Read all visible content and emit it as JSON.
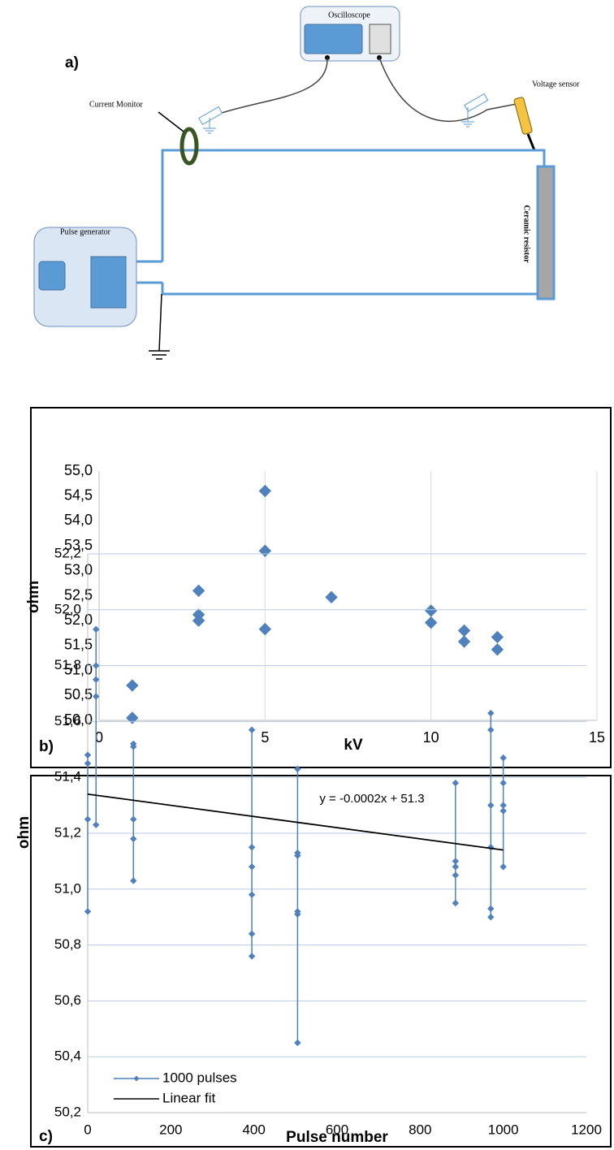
{
  "diagram": {
    "panel_label": "a)",
    "oscilloscope": "Oscilloscope",
    "current_monitor": "Current Monitor",
    "voltage_sensor": "Voltage sensor",
    "pulse_generator": "Pulse generator",
    "ceramic_resistor": "Ceramic resistor"
  },
  "chart_data": [
    {
      "type": "scatter",
      "panel_label": "b)",
      "xlabel": "kV",
      "ylabel": "ohm",
      "color": "#4f81bd",
      "x": [
        1,
        1,
        3,
        3,
        3,
        5,
        5,
        5,
        7,
        10,
        10,
        11,
        11,
        12,
        12
      ],
      "values": [
        50.7,
        50.05,
        52.6,
        52.12,
        52.0,
        54.6,
        53.4,
        51.83,
        52.47,
        52.2,
        51.96,
        51.8,
        51.58,
        51.67,
        51.42
      ],
      "xlim": [
        0,
        15
      ],
      "xticks": [
        0,
        5,
        10,
        15
      ],
      "ylim": [
        50,
        55
      ],
      "yticks": [
        {
          "value": 50,
          "label": "50,0"
        },
        {
          "value": 50.5,
          "label": "50,5"
        },
        {
          "value": 51,
          "label": "51,0"
        },
        {
          "value": 51.5,
          "label": "51,5"
        },
        {
          "value": 52,
          "label": "52,0"
        },
        {
          "value": 52.5,
          "label": "52,5"
        },
        {
          "value": 53,
          "label": "53,0"
        },
        {
          "value": 53.5,
          "label": "53,5"
        },
        {
          "value": 54,
          "label": "54,0"
        },
        {
          "value": 54.5,
          "label": "54,5"
        },
        {
          "value": 55,
          "label": "55,0"
        }
      ],
      "grid": "x"
    },
    {
      "type": "line",
      "panel_label": "c)",
      "xlabel": "Pulse number",
      "ylabel": "ohm",
      "annotation": "y = -0.0002x + 51.3",
      "legend": "lower left",
      "series": [
        {
          "name": "1000 pulses",
          "color": "#4f81bd",
          "markers": true,
          "x": [
            0,
            0,
            0,
            0,
            null,
            20,
            20,
            20,
            20,
            20,
            null,
            110,
            110,
            110,
            110,
            110,
            null,
            395,
            395,
            395,
            395,
            395,
            395,
            null,
            505,
            505,
            505,
            505,
            505,
            505,
            null,
            885,
            885,
            885,
            885,
            885,
            null,
            970,
            970,
            970,
            970,
            970,
            970,
            null,
            1000,
            1000,
            1000,
            1000,
            1000
          ],
          "values": [
            51.48,
            51.45,
            51.25,
            50.92,
            null,
            51.23,
            51.93,
            51.8,
            51.75,
            51.69,
            null,
            51.52,
            51.51,
            51.25,
            51.18,
            51.03,
            null,
            51.57,
            51.15,
            51.08,
            50.98,
            50.84,
            50.76,
            null,
            51.43,
            51.13,
            51.12,
            50.92,
            50.91,
            50.45,
            null,
            51.38,
            51.1,
            51.08,
            51.05,
            50.95,
            null,
            51.63,
            51.57,
            51.3,
            51.15,
            50.93,
            50.9,
            null,
            51.47,
            51.38,
            51.3,
            51.28,
            51.08
          ]
        },
        {
          "name": "Linear fit",
          "color": "#000000",
          "markers": false,
          "x": [
            0,
            1000
          ],
          "values": [
            51.34,
            51.14
          ]
        }
      ],
      "xlim": [
        0,
        1200
      ],
      "xticks": [
        0,
        200,
        400,
        600,
        800,
        1000,
        1200
      ],
      "ylim": [
        50.2,
        52.2
      ],
      "yticks": [
        {
          "value": 50.2,
          "label": "50,2"
        },
        {
          "value": 50.4,
          "label": "50,4"
        },
        {
          "value": 50.6,
          "label": "50,6"
        },
        {
          "value": 50.8,
          "label": "50,8"
        },
        {
          "value": 51,
          "label": "51,0"
        },
        {
          "value": 51.2,
          "label": "51,2"
        },
        {
          "value": 51.4,
          "label": "51,4"
        },
        {
          "value": 51.6,
          "label": "51,6"
        },
        {
          "value": 51.8,
          "label": "51,8"
        },
        {
          "value": 52,
          "label": "52,0"
        },
        {
          "value": 52.2,
          "label": "52,2"
        }
      ],
      "grid": "y"
    }
  ]
}
